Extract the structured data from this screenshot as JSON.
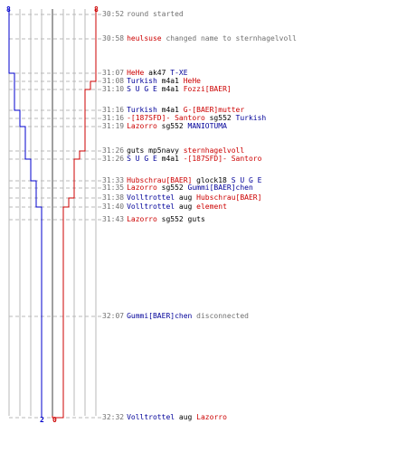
{
  "colors": {
    "blue_team": "#0000cc",
    "red_team": "#cc0000",
    "grid": "#b8b8b8",
    "timestamp": "#707070"
  },
  "scores": {
    "blue_start": "8",
    "red_start": "8",
    "blue_end": "2",
    "red_end": "0"
  },
  "events": [
    {
      "time": "30:52",
      "parts": [
        {
          "t": "round started",
          "c": "msg"
        }
      ]
    },
    {
      "time": "30:58",
      "parts": [
        {
          "t": "heulsuse",
          "c": "red"
        },
        {
          "t": " changed name to sternhagelvoll",
          "c": "msg"
        }
      ]
    },
    {
      "time": "31:07",
      "parts": [
        {
          "t": "HeHe",
          "c": "red"
        },
        {
          "t": " ak47 ",
          "c": "plain"
        },
        {
          "t": "T-XE",
          "c": "blue"
        }
      ]
    },
    {
      "time": "31:08",
      "parts": [
        {
          "t": "Turkish",
          "c": "blue"
        },
        {
          "t": " m4a1 ",
          "c": "plain"
        },
        {
          "t": "HeHe",
          "c": "red"
        }
      ]
    },
    {
      "time": "31:10",
      "parts": [
        {
          "t": "S U G E",
          "c": "blue"
        },
        {
          "t": " m4a1 ",
          "c": "plain"
        },
        {
          "t": "Fozzi[BAER]",
          "c": "red"
        }
      ]
    },
    {
      "time": "31:16",
      "parts": [
        {
          "t": "Turkish",
          "c": "blue"
        },
        {
          "t": " m4a1 ",
          "c": "plain"
        },
        {
          "t": "G-[BAER]mutter",
          "c": "red"
        }
      ]
    },
    {
      "time": "31:16",
      "parts": [
        {
          "t": "-[187SFD]- Santoro",
          "c": "red"
        },
        {
          "t": " sg552 ",
          "c": "plain"
        },
        {
          "t": "Turkish",
          "c": "blue"
        }
      ]
    },
    {
      "time": "31:19",
      "parts": [
        {
          "t": "Lazorro",
          "c": "red"
        },
        {
          "t": " sg552 ",
          "c": "plain"
        },
        {
          "t": "MANIOTUMA",
          "c": "blue"
        }
      ]
    },
    {
      "time": "31:26",
      "parts": [
        {
          "t": "guts",
          "c": "plain"
        },
        {
          "t": " mp5navy ",
          "c": "plain"
        },
        {
          "t": "sternhagelvoll",
          "c": "red"
        }
      ]
    },
    {
      "time": "31:26",
      "parts": [
        {
          "t": "S U G E",
          "c": "blue"
        },
        {
          "t": " m4a1 ",
          "c": "plain"
        },
        {
          "t": "-[187SFD]- Santoro",
          "c": "red"
        }
      ]
    },
    {
      "time": "31:33",
      "parts": [
        {
          "t": "Hubschrau[BAER]",
          "c": "red"
        },
        {
          "t": " glock18 ",
          "c": "plain"
        },
        {
          "t": "S U G E",
          "c": "blue"
        }
      ]
    },
    {
      "time": "31:35",
      "parts": [
        {
          "t": "Lazorro",
          "c": "red"
        },
        {
          "t": " sg552 ",
          "c": "plain"
        },
        {
          "t": "Gummi[BAER]chen",
          "c": "blue"
        }
      ]
    },
    {
      "time": "31:38",
      "parts": [
        {
          "t": "Volltrottel",
          "c": "blue"
        },
        {
          "t": " aug ",
          "c": "plain"
        },
        {
          "t": "Hubschrau[BAER]",
          "c": "red"
        }
      ]
    },
    {
      "time": "31:40",
      "parts": [
        {
          "t": "Volltrottel",
          "c": "blue"
        },
        {
          "t": " aug ",
          "c": "plain"
        },
        {
          "t": "element",
          "c": "red"
        }
      ]
    },
    {
      "time": "31:43",
      "parts": [
        {
          "t": "Lazorro",
          "c": "red"
        },
        {
          "t": " sg552 ",
          "c": "plain"
        },
        {
          "t": "guts",
          "c": "plain"
        }
      ]
    },
    {
      "time": "32:07",
      "parts": [
        {
          "t": "Gummi[BAER]chen",
          "c": "blue"
        },
        {
          "t": " disconnected",
          "c": "msg"
        }
      ]
    },
    {
      "time": "32:32",
      "parts": [
        {
          "t": "Volltrottel",
          "c": "blue"
        },
        {
          "t": " aug ",
          "c": "plain"
        },
        {
          "t": "Lazorro",
          "c": "red"
        }
      ]
    }
  ],
  "alive_steps": {
    "blue": [
      8,
      8,
      8,
      7,
      7,
      7,
      6,
      6,
      5,
      5,
      4,
      3,
      3,
      3,
      2,
      2,
      2,
      2
    ],
    "red": [
      8,
      8,
      8,
      8,
      7,
      6,
      6,
      6,
      6,
      5,
      4,
      4,
      4,
      3,
      2,
      2,
      2,
      0
    ]
  }
}
